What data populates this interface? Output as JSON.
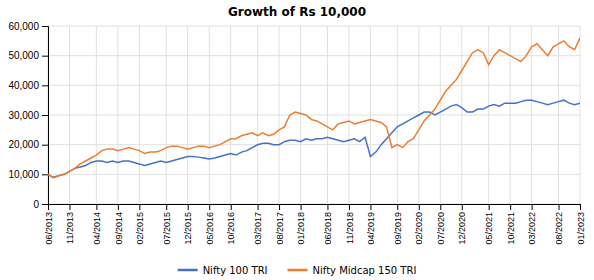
{
  "chart_data": {
    "type": "line",
    "title": "Growth of Rs 10,000",
    "categories": [
      "06/2013",
      null,
      null,
      null,
      "11/2013",
      null,
      null,
      null,
      null,
      "04/2014",
      null,
      null,
      null,
      "09/2014",
      null,
      null,
      null,
      "02/2015",
      null,
      null,
      null,
      null,
      "07/2015",
      null,
      null,
      null,
      "12/2015",
      null,
      null,
      null,
      "05/2016",
      null,
      null,
      null,
      "10/2016",
      null,
      null,
      null,
      null,
      "03/2017",
      null,
      null,
      null,
      "08/2017",
      null,
      null,
      null,
      "01/2018",
      null,
      null,
      null,
      null,
      "06/2018",
      null,
      null,
      null,
      "11/2018",
      null,
      null,
      null,
      "04/2019",
      null,
      null,
      null,
      null,
      "09/2019",
      null,
      null,
      null,
      "02/2020",
      null,
      null,
      null,
      "07/2020",
      null,
      null,
      null,
      "12/2020",
      null,
      null,
      null,
      null,
      "05/2021",
      null,
      null,
      null,
      "10/2021",
      null,
      null,
      null,
      "03/2022",
      null,
      null,
      null,
      null,
      "08/2022",
      null,
      null,
      null,
      "01/2023"
    ],
    "series": [
      {
        "name": "Nifty 100 TRI",
        "color": "#4472C4",
        "values": [
          10000,
          9000,
          9500,
          10000,
          11000,
          12000,
          12500,
          13000,
          14000,
          14500,
          14500,
          14000,
          14500,
          14000,
          14500,
          14500,
          14000,
          13500,
          13000,
          13500,
          14000,
          14500,
          14000,
          14500,
          15000,
          15500,
          16000,
          16000,
          15800,
          15500,
          15200,
          15500,
          16000,
          16500,
          17000,
          16500,
          17500,
          18000,
          19000,
          20000,
          20500,
          20500,
          20000,
          20000,
          21000,
          21500,
          21500,
          21000,
          22000,
          21500,
          22000,
          22000,
          22500,
          22000,
          21500,
          21000,
          21500,
          22000,
          21000,
          22500,
          16000,
          17500,
          20000,
          22000,
          24000,
          26000,
          27000,
          28000,
          29000,
          30000,
          31000,
          31000,
          30000,
          31000,
          32000,
          33000,
          33500,
          32500,
          31000,
          31000,
          32000,
          32000,
          33000,
          33500,
          33000,
          34000,
          34000,
          34000,
          34500,
          35000,
          35000,
          34500,
          34000,
          33500,
          34000,
          34500,
          35000,
          34000,
          33500,
          34000
        ]
      },
      {
        "name": "Nifty Midcap 150 TRI",
        "color": "#ED7D31",
        "values": [
          10000,
          8800,
          9500,
          10000,
          11000,
          12000,
          13500,
          14500,
          15500,
          16500,
          18000,
          18500,
          18500,
          18000,
          18500,
          19000,
          18500,
          18000,
          17000,
          17500,
          17500,
          18000,
          19000,
          19500,
          19500,
          19000,
          18500,
          19000,
          19500,
          19500,
          19000,
          19500,
          20000,
          21000,
          22000,
          22000,
          23000,
          23500,
          24000,
          23000,
          24000,
          23000,
          23500,
          25000,
          26000,
          30000,
          31000,
          30500,
          30000,
          28500,
          28000,
          27000,
          26000,
          25000,
          27000,
          27500,
          28000,
          27000,
          27500,
          28000,
          28500,
          28000,
          27500,
          26000,
          19000,
          20000,
          19000,
          21000,
          22000,
          25000,
          28000,
          30000,
          32000,
          35000,
          38000,
          40000,
          42000,
          45000,
          48000,
          51000,
          52000,
          51000,
          47000,
          50000,
          52000,
          51000,
          50000,
          49000,
          48000,
          50000,
          53000,
          54000,
          52000,
          50000,
          53000,
          54000,
          55000,
          53000,
          52000,
          56000
        ]
      }
    ],
    "ylim": [
      0,
      60000
    ],
    "yticks": [
      0,
      {
        "value": 10000,
        "label": "10,000"
      },
      {
        "value": 20000,
        "label": "20,000"
      },
      {
        "value": 30000,
        "label": "30,000"
      },
      {
        "value": 40000,
        "label": "40,000"
      },
      {
        "value": 50000,
        "label": "50,000"
      },
      {
        "value": 60000,
        "label": "60,000"
      }
    ],
    "grid": true,
    "legend": "bottom"
  }
}
